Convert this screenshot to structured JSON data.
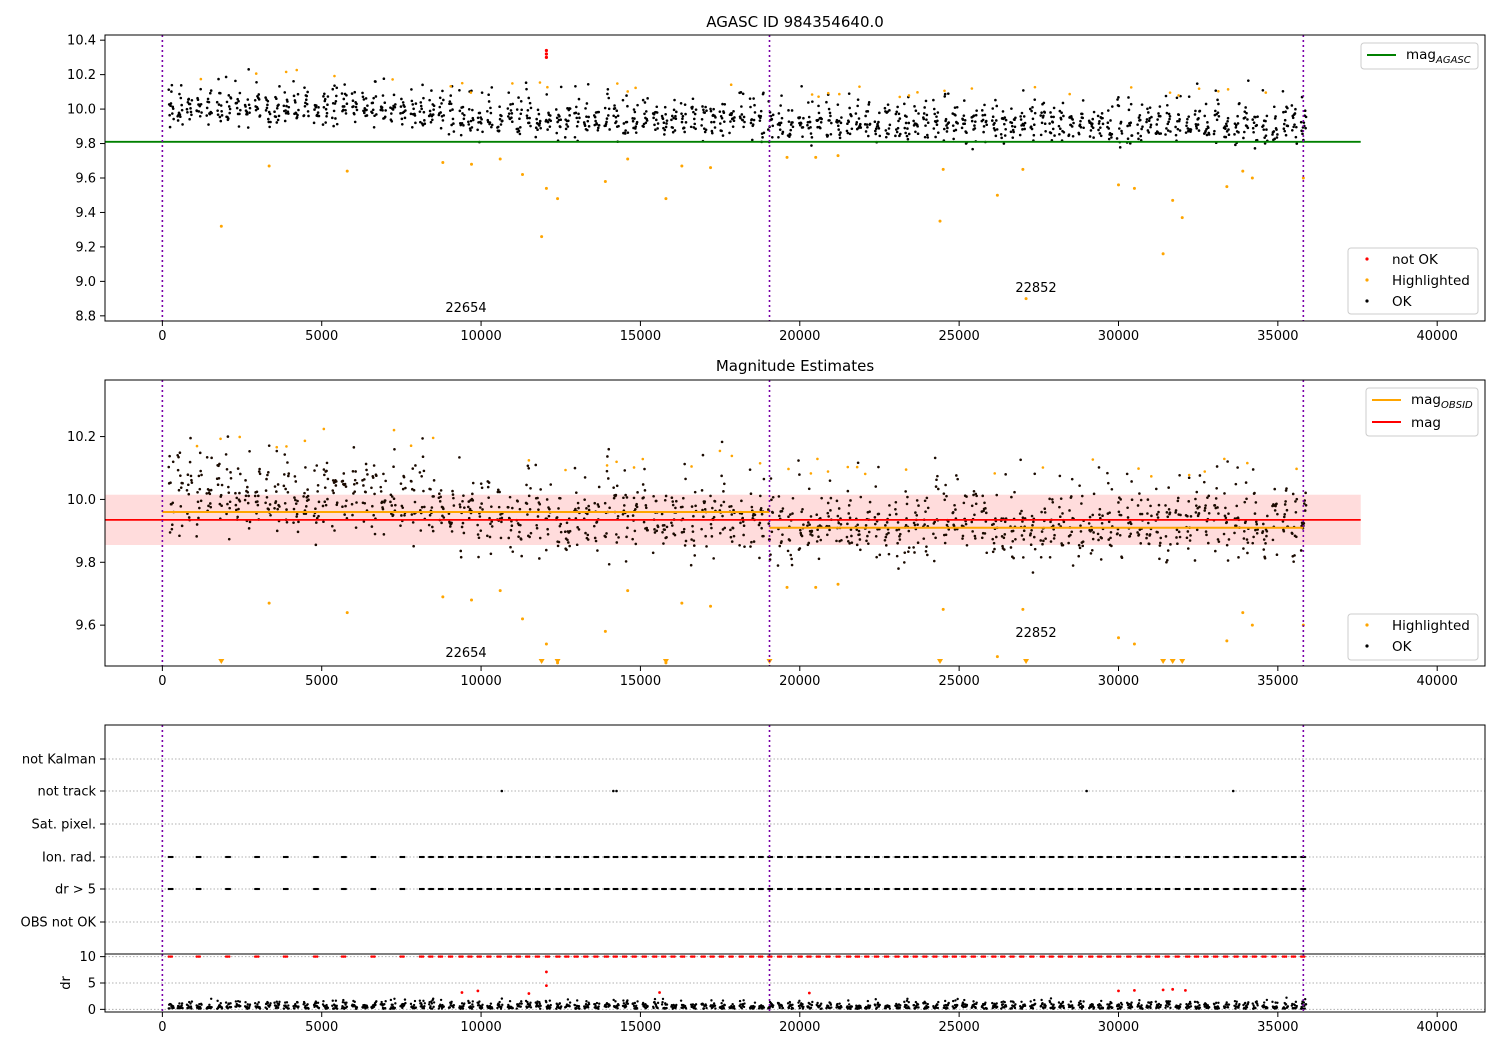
{
  "chart_data": [
    {
      "type": "scatter",
      "title": "AGASC ID 984354640.0",
      "xlim": [
        -1800,
        41500
      ],
      "ylim": [
        8.77,
        10.43
      ],
      "xticks": [
        0,
        5000,
        10000,
        15000,
        20000,
        25000,
        30000,
        35000,
        40000
      ],
      "yticks": [
        8.8,
        9.0,
        9.2,
        9.4,
        9.6,
        9.8,
        10.0,
        10.2,
        10.4
      ],
      "ylabel": "",
      "xlabel": "",
      "grid": false,
      "vlines": [
        0,
        19050,
        35800
      ],
      "hline_mag_agasc": 9.81,
      "legend_top": {
        "position": "top-right",
        "entries": [
          {
            "label": "mag",
            "sub": "AGASC",
            "color": "#008000"
          }
        ]
      },
      "legend_bottom": {
        "position": "bottom-right",
        "entries": [
          {
            "label": "not OK",
            "color": "#ff0000"
          },
          {
            "label": "Highlighted",
            "color": "#ffa500"
          },
          {
            "label": "OK",
            "color": "#000000"
          }
        ]
      },
      "annotations": [
        {
          "text": "22654",
          "x": 9600,
          "y": 8.82
        },
        {
          "text": "22852",
          "x": 27500,
          "y": 8.94
        }
      ],
      "not_ok_points": [
        {
          "x": 12050,
          "y": 10.34
        },
        {
          "x": 12050,
          "y": 10.32
        },
        {
          "x": 12050,
          "y": 10.3
        }
      ],
      "highlighted_outliers": [
        {
          "x": 1850,
          "y": 9.32
        },
        {
          "x": 3350,
          "y": 9.67
        },
        {
          "x": 5800,
          "y": 9.64
        },
        {
          "x": 8800,
          "y": 9.69
        },
        {
          "x": 9700,
          "y": 9.68
        },
        {
          "x": 10600,
          "y": 9.71
        },
        {
          "x": 11300,
          "y": 9.62
        },
        {
          "x": 11900,
          "y": 9.26
        },
        {
          "x": 12050,
          "y": 9.54
        },
        {
          "x": 12400,
          "y": 9.48
        },
        {
          "x": 13900,
          "y": 9.58
        },
        {
          "x": 14600,
          "y": 9.71
        },
        {
          "x": 15800,
          "y": 9.48
        },
        {
          "x": 16300,
          "y": 9.67
        },
        {
          "x": 17200,
          "y": 9.66
        },
        {
          "x": 19600,
          "y": 9.72
        },
        {
          "x": 20500,
          "y": 9.72
        },
        {
          "x": 21200,
          "y": 9.73
        },
        {
          "x": 24400,
          "y": 9.35
        },
        {
          "x": 24500,
          "y": 9.65
        },
        {
          "x": 26200,
          "y": 9.5
        },
        {
          "x": 27100,
          "y": 8.9
        },
        {
          "x": 27000,
          "y": 9.65
        },
        {
          "x": 30000,
          "y": 9.56
        },
        {
          "x": 30500,
          "y": 9.54
        },
        {
          "x": 31400,
          "y": 9.16
        },
        {
          "x": 31700,
          "y": 9.47
        },
        {
          "x": 32000,
          "y": 9.37
        },
        {
          "x": 33400,
          "y": 9.55
        },
        {
          "x": 33900,
          "y": 9.64
        },
        {
          "x": 34200,
          "y": 9.6
        },
        {
          "x": 35800,
          "y": 9.6
        }
      ]
    },
    {
      "type": "scatter",
      "title": "Magnitude Estimates",
      "xlim": [
        -1800,
        41500
      ],
      "ylim": [
        9.47,
        10.38
      ],
      "xticks": [
        0,
        5000,
        10000,
        15000,
        20000,
        25000,
        30000,
        35000,
        40000
      ],
      "yticks": [
        9.6,
        9.8,
        10.0,
        10.2
      ],
      "ylabel": "",
      "xlabel": "",
      "grid": false,
      "vlines": [
        0,
        19050,
        35800
      ],
      "mag": 9.935,
      "mag_band": [
        9.855,
        10.015
      ],
      "mag_obsid_segments": [
        {
          "x0": 0,
          "x1": 19050,
          "y": 9.96
        },
        {
          "x0": 19050,
          "x1": 35800,
          "y": 9.91
        }
      ],
      "legend_top": {
        "position": "top-right",
        "entries": [
          {
            "label": "mag",
            "sub": "OBSID",
            "color": "#ffa500"
          },
          {
            "label": "mag",
            "sub": "",
            "color": "#ff0000"
          }
        ]
      },
      "legend_bottom": {
        "position": "bottom-right",
        "entries": [
          {
            "label": "Highlighted",
            "color": "#ffa500"
          },
          {
            "label": "OK",
            "color": "#000000"
          }
        ]
      },
      "annotations": [
        {
          "text": "22654",
          "x": 9600,
          "y": 9.5
        },
        {
          "text": "22852",
          "x": 27500,
          "y": 9.58
        }
      ],
      "below_range_markers": [
        1850,
        11900,
        12400,
        15800,
        19050,
        24400,
        27100,
        31400,
        31700,
        32000
      ]
    },
    {
      "type": "scatter",
      "title": "",
      "xlim": [
        -1800,
        41500
      ],
      "categories": [
        "not Kalman",
        "not track",
        "Sat. pixel.",
        "Ion. rad.",
        "dr > 5",
        "OBS not OK"
      ],
      "grid": "horizontal dotted",
      "vlines": [
        0,
        19050,
        35800
      ],
      "not_track_points": [
        10650,
        14150,
        14250,
        29000,
        33600
      ]
    },
    {
      "type": "scatter",
      "title": "",
      "xlim": [
        -1800,
        41500
      ],
      "ylim": [
        -0.5,
        10.5
      ],
      "xticks": [
        0,
        5000,
        10000,
        15000,
        20000,
        25000,
        30000,
        35000,
        40000
      ],
      "yticks": [
        0,
        5,
        10
      ],
      "ylabel": "dr",
      "xlabel": "",
      "grid": "horizontal dotted",
      "vlines": [
        0,
        19050,
        35800
      ],
      "red_clipped_value": 10,
      "red_outliers": [
        {
          "x": 12050,
          "y": 7.1
        },
        {
          "x": 12050,
          "y": 4.5
        },
        {
          "x": 9400,
          "y": 3.2
        },
        {
          "x": 9900,
          "y": 3.5
        },
        {
          "x": 11500,
          "y": 3.0
        },
        {
          "x": 15600,
          "y": 3.2
        },
        {
          "x": 20300,
          "y": 3.1
        },
        {
          "x": 30000,
          "y": 3.5
        },
        {
          "x": 30500,
          "y": 3.6
        },
        {
          "x": 31400,
          "y": 3.7
        },
        {
          "x": 31700,
          "y": 3.8
        },
        {
          "x": 32100,
          "y": 3.6
        }
      ]
    }
  ]
}
